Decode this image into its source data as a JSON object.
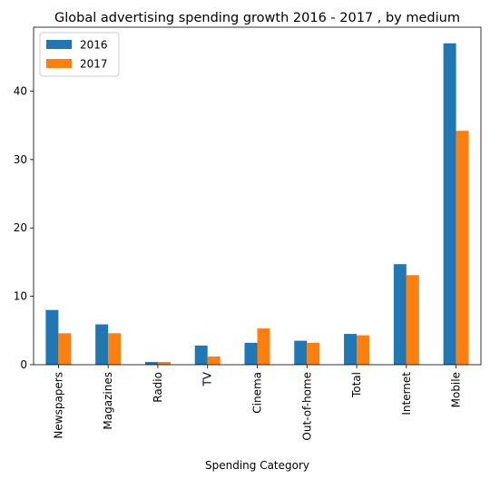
{
  "chart_data": {
    "type": "bar",
    "title": "Global advertising spending growth 2016 - 2017 , by medium",
    "xlabel": "Spending Category",
    "ylabel": "",
    "categories": [
      "Newspapers",
      "Magazines",
      "Radio",
      "TV",
      "Cinema",
      "Out-of-home",
      "Total",
      "Internet",
      "Mobile"
    ],
    "series": [
      {
        "name": "2016",
        "color": "#1f77b4",
        "values": [
          8.0,
          5.9,
          0.4,
          2.8,
          3.2,
          3.5,
          4.5,
          14.7,
          47.0
        ]
      },
      {
        "name": "2017",
        "color": "#ff7f0e",
        "values": [
          4.6,
          4.6,
          0.4,
          1.2,
          5.3,
          3.2,
          4.3,
          13.1,
          34.2
        ]
      }
    ],
    "yticks": [
      0,
      10,
      20,
      30,
      40
    ],
    "ylim": [
      0,
      49.35
    ],
    "legend_position": "top-left",
    "grid": false
  }
}
